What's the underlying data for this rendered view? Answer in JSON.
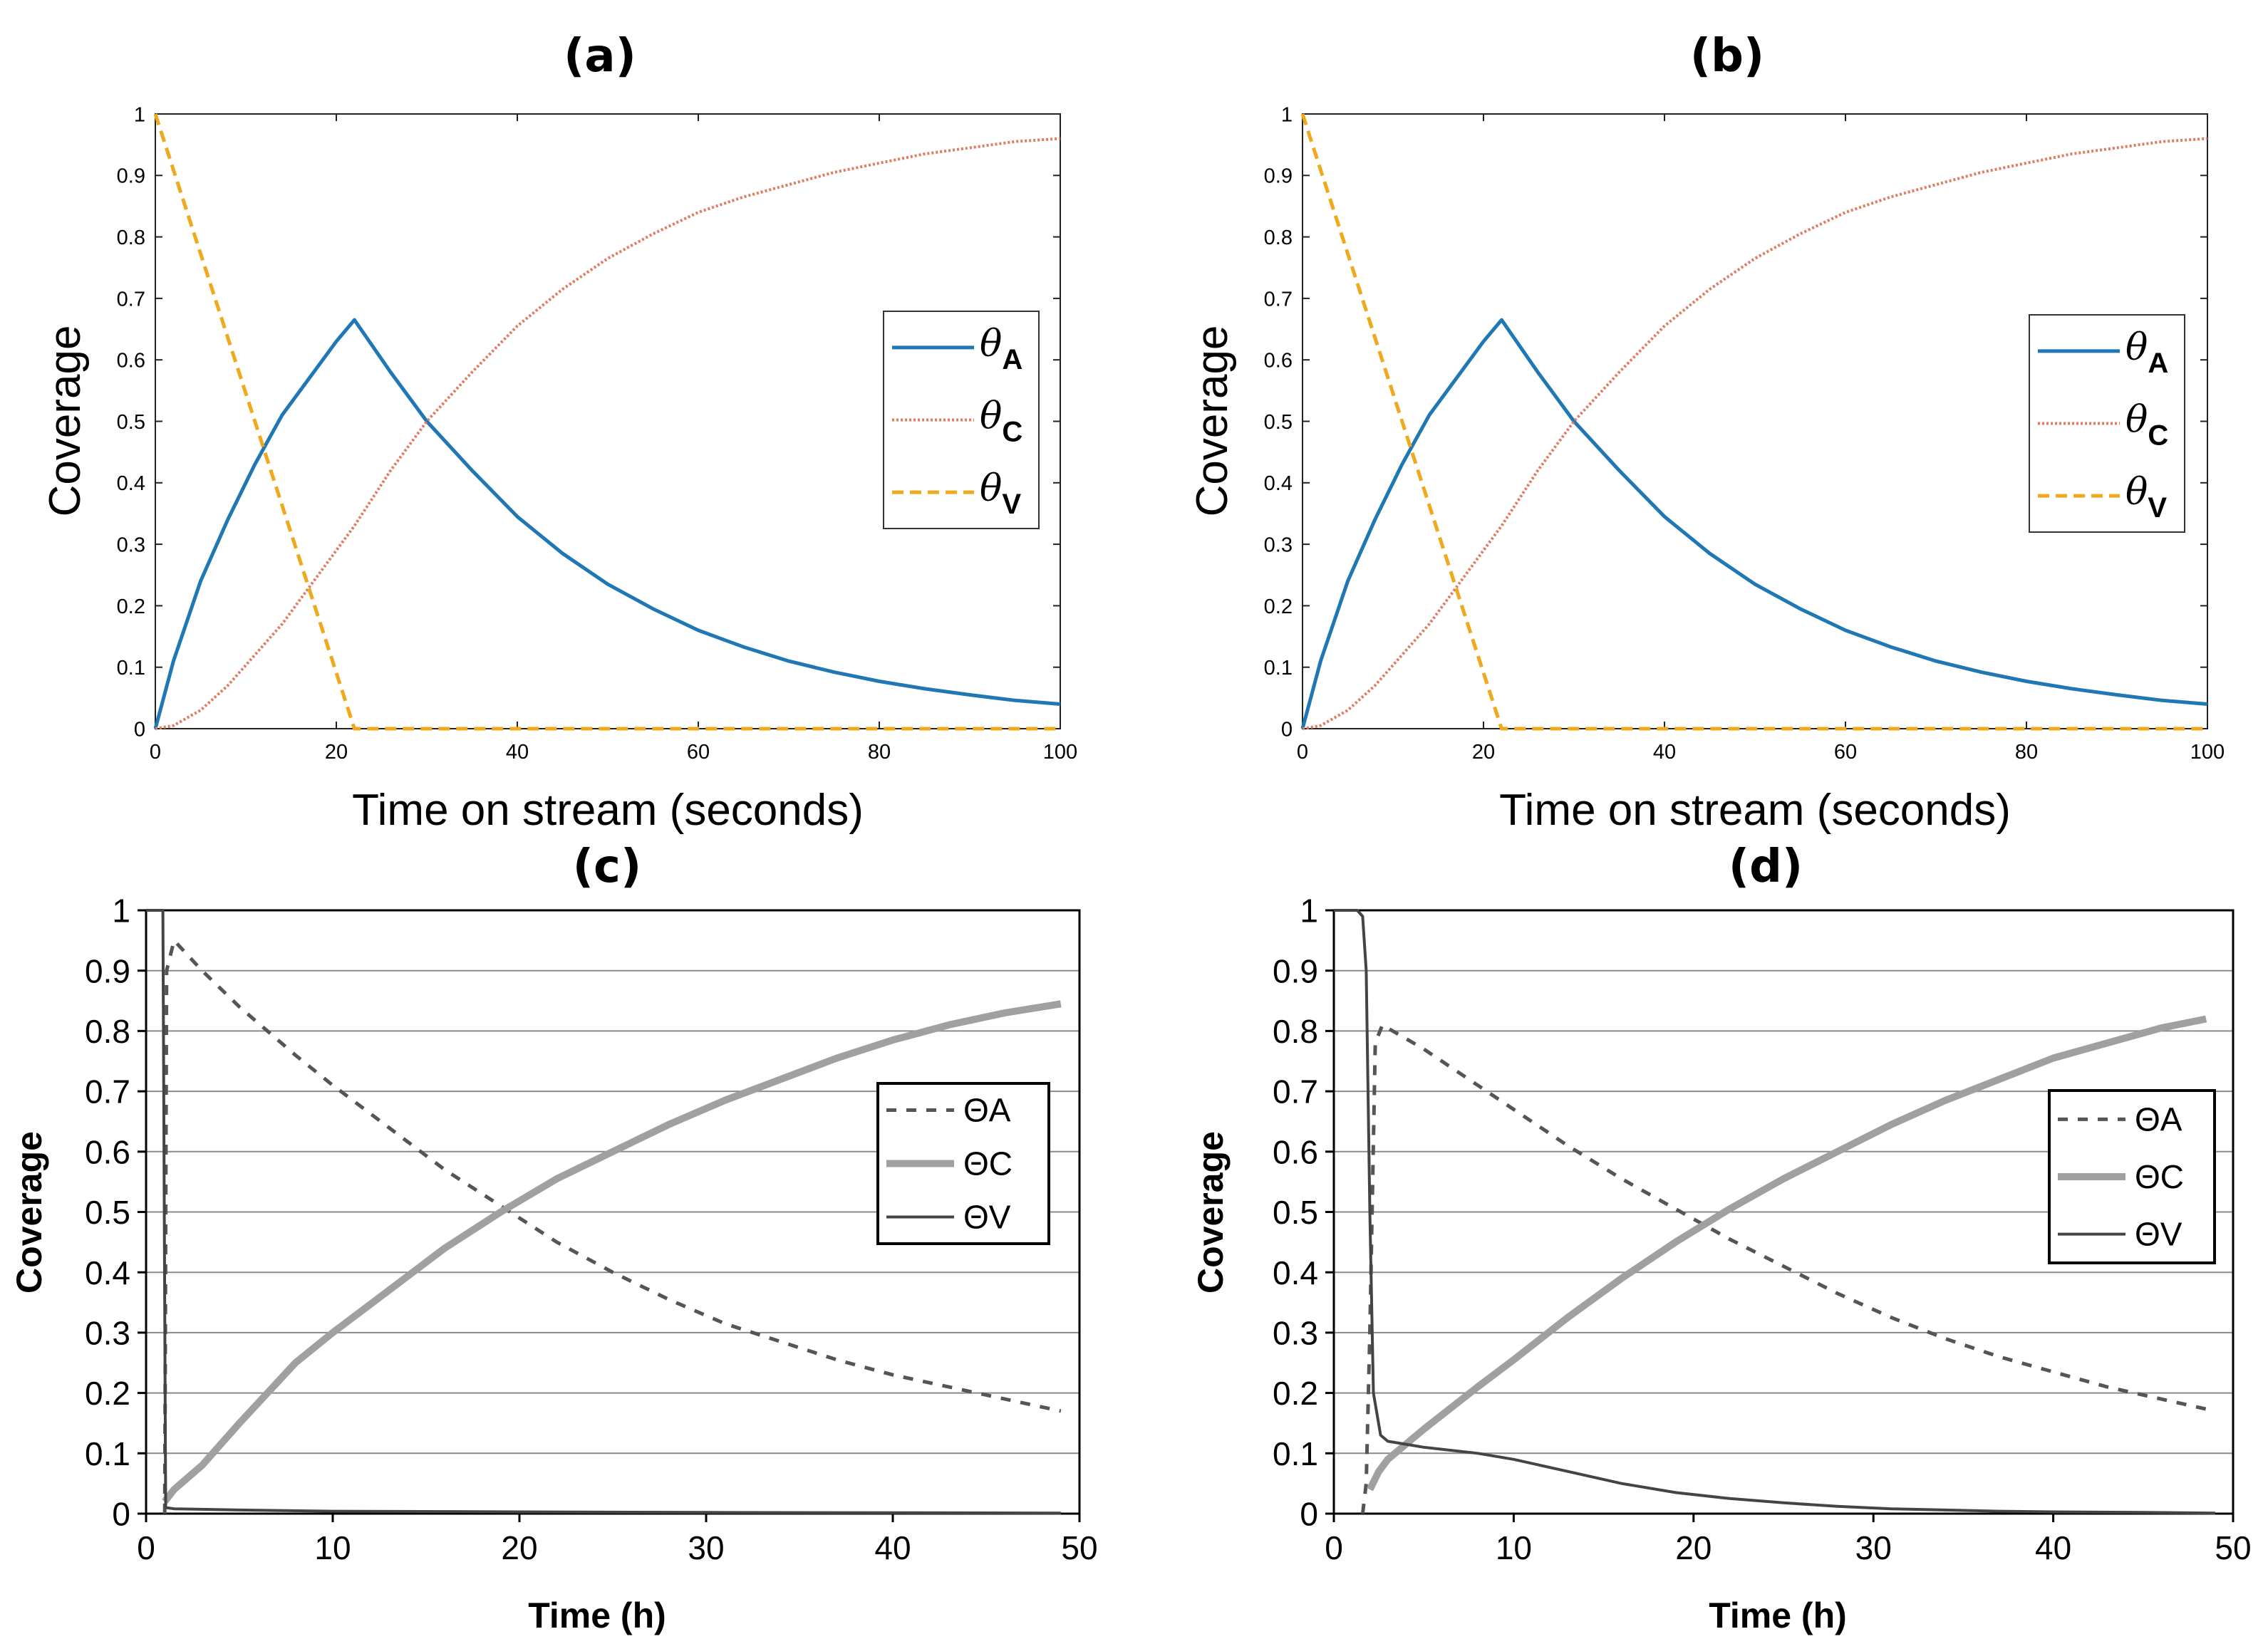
{
  "chart_data": [
    {
      "panel": "(a)",
      "type": "line",
      "xlabel": "Time on stream (seconds)",
      "ylabel": "Coverage",
      "xlim": [
        0,
        100
      ],
      "ylim": [
        0,
        1
      ],
      "xticks": [
        0,
        20,
        40,
        60,
        80,
        100
      ],
      "yticks": [
        0,
        0.1,
        0.2,
        0.3,
        0.4,
        0.5,
        0.6,
        0.7,
        0.8,
        0.9,
        1
      ],
      "ytick_labels": [
        "0",
        "0.1",
        "0.2",
        "0.3",
        "0.4",
        "0.5",
        "0.6",
        "0.7",
        "0.8",
        "0.9",
        "1"
      ],
      "grid": false,
      "legend": "right",
      "legend_symbol": "θ",
      "colors": {
        "A": "#1f77b4",
        "C": "#e07b5e",
        "V": "#f0a81c"
      },
      "series": [
        {
          "name": "A",
          "x": [
            0,
            2,
            5,
            8,
            11,
            14,
            17,
            20,
            22,
            26,
            30,
            35,
            40,
            45,
            50,
            55,
            60,
            65,
            70,
            75,
            80,
            85,
            90,
            95,
            100
          ],
          "y": [
            0,
            0.11,
            0.24,
            0.34,
            0.43,
            0.51,
            0.57,
            0.63,
            0.665,
            0.58,
            0.5,
            0.42,
            0.345,
            0.285,
            0.235,
            0.195,
            0.16,
            0.133,
            0.11,
            0.092,
            0.077,
            0.065,
            0.055,
            0.046,
            0.04
          ]
        },
        {
          "name": "C",
          "x": [
            0,
            2,
            5,
            8,
            11,
            14,
            17,
            20,
            22,
            26,
            30,
            35,
            40,
            45,
            50,
            55,
            60,
            65,
            70,
            75,
            80,
            85,
            90,
            95,
            100
          ],
          "y": [
            0,
            0.005,
            0.03,
            0.07,
            0.12,
            0.17,
            0.23,
            0.29,
            0.33,
            0.42,
            0.5,
            0.58,
            0.655,
            0.715,
            0.765,
            0.805,
            0.84,
            0.865,
            0.885,
            0.905,
            0.92,
            0.935,
            0.945,
            0.955,
            0.96
          ]
        },
        {
          "name": "V",
          "x": [
            0,
            22,
            100
          ],
          "y": [
            1,
            0,
            0
          ]
        }
      ]
    },
    {
      "panel": "(b)",
      "type": "line",
      "xlabel": "Time on stream (seconds)",
      "ylabel": "Coverage",
      "xlim": [
        0,
        100
      ],
      "ylim": [
        0,
        1
      ],
      "xticks": [
        0,
        20,
        40,
        60,
        80,
        100
      ],
      "yticks": [
        0,
        0.1,
        0.2,
        0.3,
        0.4,
        0.5,
        0.6,
        0.7,
        0.8,
        0.9,
        1
      ],
      "ytick_labels": [
        "0",
        "0.1",
        "0.2",
        "0.3",
        "0.4",
        "0.5",
        "0.6",
        "0.7",
        "0.8",
        "0.9",
        "1"
      ],
      "grid": false,
      "legend": "right",
      "legend_symbol": "θ",
      "colors": {
        "A": "#1f77b4",
        "C": "#e07b5e",
        "V": "#f0a81c"
      },
      "series": [
        {
          "name": "A",
          "x": [
            0,
            2,
            5,
            8,
            11,
            14,
            17,
            20,
            22,
            26,
            30,
            35,
            40,
            45,
            50,
            55,
            60,
            65,
            70,
            75,
            80,
            85,
            90,
            95,
            100
          ],
          "y": [
            0,
            0.11,
            0.24,
            0.34,
            0.43,
            0.51,
            0.57,
            0.63,
            0.665,
            0.58,
            0.5,
            0.42,
            0.345,
            0.285,
            0.235,
            0.195,
            0.16,
            0.133,
            0.11,
            0.092,
            0.077,
            0.065,
            0.055,
            0.046,
            0.04
          ]
        },
        {
          "name": "C",
          "x": [
            0,
            2,
            5,
            8,
            11,
            14,
            17,
            20,
            22,
            26,
            30,
            35,
            40,
            45,
            50,
            55,
            60,
            65,
            70,
            75,
            80,
            85,
            90,
            95,
            100
          ],
          "y": [
            0,
            0.005,
            0.03,
            0.07,
            0.12,
            0.17,
            0.23,
            0.29,
            0.33,
            0.42,
            0.5,
            0.58,
            0.655,
            0.715,
            0.765,
            0.805,
            0.84,
            0.865,
            0.885,
            0.905,
            0.92,
            0.935,
            0.945,
            0.955,
            0.96
          ]
        },
        {
          "name": "V",
          "x": [
            0,
            22,
            100
          ],
          "y": [
            1,
            0,
            0
          ]
        }
      ]
    },
    {
      "panel": "(c)",
      "type": "line",
      "xlabel": "Time (h)",
      "ylabel": "Coverage",
      "xlim": [
        0,
        50
      ],
      "ylim": [
        0,
        1
      ],
      "xticks": [
        0,
        10,
        20,
        30,
        40,
        50
      ],
      "yticks": [
        0,
        0.1,
        0.2,
        0.3,
        0.4,
        0.5,
        0.6,
        0.7,
        0.8,
        0.9,
        1
      ],
      "ytick_labels": [
        "0",
        "0.1",
        "0.2",
        "0.3",
        "0.4",
        "0.5",
        "0.6",
        "0.7",
        "0.8",
        "0.9",
        "1"
      ],
      "grid": true,
      "legend": "right",
      "legend_symbol": "Θ",
      "colors": {
        "A": "#555555",
        "C": "#a0a0a0",
        "V": "#444444"
      },
      "series": [
        {
          "name": "A",
          "x": [
            1.0,
            1.1,
            1.5,
            3,
            5,
            8,
            10,
            13,
            16,
            19,
            22,
            25,
            28,
            31,
            34,
            37,
            40,
            43,
            46,
            49
          ],
          "y": [
            0,
            0.9,
            0.95,
            0.9,
            0.84,
            0.76,
            0.71,
            0.64,
            0.57,
            0.51,
            0.45,
            0.4,
            0.355,
            0.315,
            0.285,
            0.255,
            0.23,
            0.21,
            0.19,
            0.17
          ]
        },
        {
          "name": "C",
          "x": [
            1.0,
            1.5,
            3,
            5,
            8,
            10,
            13,
            16,
            19,
            22,
            25,
            28,
            31,
            34,
            37,
            40,
            43,
            46,
            49
          ],
          "y": [
            0.02,
            0.04,
            0.08,
            0.15,
            0.25,
            0.3,
            0.37,
            0.44,
            0.5,
            0.555,
            0.6,
            0.645,
            0.685,
            0.72,
            0.755,
            0.785,
            0.81,
            0.83,
            0.845
          ]
        },
        {
          "name": "V",
          "x": [
            0,
            0.9,
            1.05,
            1.5,
            5,
            10,
            20,
            30,
            49
          ],
          "y": [
            1,
            1,
            0.01,
            0.008,
            0.006,
            0.004,
            0.003,
            0.002,
            0.001
          ]
        }
      ]
    },
    {
      "panel": "(d)",
      "type": "line",
      "xlabel": "Time (h)",
      "ylabel": "Coverage",
      "xlim": [
        0,
        50
      ],
      "ylim": [
        0,
        1
      ],
      "xticks": [
        0,
        10,
        20,
        30,
        40,
        50
      ],
      "yticks": [
        0,
        0.1,
        0.2,
        0.3,
        0.4,
        0.5,
        0.6,
        0.7,
        0.8,
        0.9,
        1
      ],
      "ytick_labels": [
        "0",
        "0.1",
        "0.2",
        "0.3",
        "0.4",
        "0.5",
        "0.6",
        "0.7",
        "0.8",
        "0.9",
        "1"
      ],
      "grid": true,
      "legend": "right",
      "legend_symbol": "Θ",
      "colors": {
        "A": "#555555",
        "C": "#a0a0a0",
        "V": "#444444"
      },
      "series": [
        {
          "name": "A",
          "x": [
            1.6,
            1.8,
            2.0,
            2.3,
            2.7,
            5,
            8,
            10,
            13,
            16,
            19,
            22,
            25,
            28,
            31,
            34,
            37,
            40,
            43,
            46,
            49
          ],
          "y": [
            0,
            0.05,
            0.3,
            0.78,
            0.81,
            0.77,
            0.71,
            0.67,
            0.61,
            0.555,
            0.505,
            0.455,
            0.41,
            0.365,
            0.325,
            0.29,
            0.26,
            0.235,
            0.21,
            0.19,
            0.17
          ]
        },
        {
          "name": "C",
          "x": [
            2.0,
            2.5,
            3,
            5,
            8,
            10,
            13,
            16,
            19,
            22,
            25,
            28,
            31,
            34,
            37,
            40,
            43,
            46,
            48.5
          ],
          "y": [
            0.04,
            0.07,
            0.09,
            0.14,
            0.21,
            0.255,
            0.325,
            0.39,
            0.45,
            0.505,
            0.555,
            0.6,
            0.645,
            0.685,
            0.72,
            0.755,
            0.78,
            0.805,
            0.82
          ]
        },
        {
          "name": "V",
          "x": [
            0,
            1.3,
            1.6,
            1.8,
            2.0,
            2.2,
            2.6,
            3,
            5,
            8,
            10,
            13,
            16,
            19,
            22,
            25,
            28,
            31,
            34,
            37,
            40,
            45,
            49
          ],
          "y": [
            1,
            1,
            0.99,
            0.9,
            0.5,
            0.2,
            0.13,
            0.12,
            0.11,
            0.1,
            0.09,
            0.07,
            0.05,
            0.035,
            0.025,
            0.018,
            0.012,
            0.008,
            0.006,
            0.004,
            0.003,
            0.002,
            0.001
          ]
        }
      ]
    }
  ]
}
